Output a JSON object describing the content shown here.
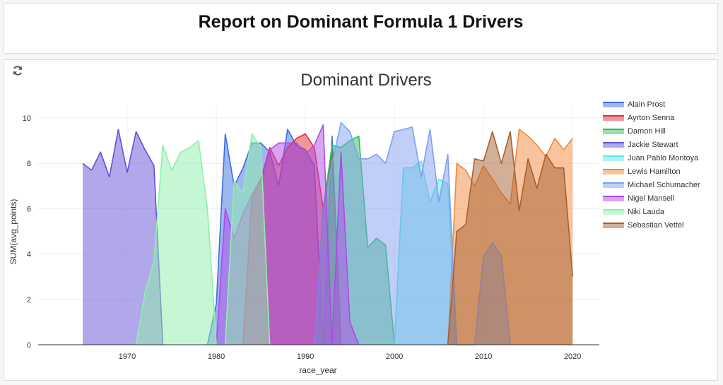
{
  "report": {
    "title": "Report on Dominant Formula 1 Drivers"
  },
  "chart_data": {
    "type": "area",
    "title": "Dominant Drivers",
    "xlabel": "race_year",
    "ylabel": "SUM(avg_points)",
    "xlim": [
      1960,
      2023
    ],
    "ylim": [
      0,
      10.5
    ],
    "x_ticks": [
      1970,
      1980,
      1990,
      2000,
      2010,
      2020
    ],
    "y_ticks": [
      0,
      2,
      4,
      6,
      8,
      10
    ],
    "grid": true,
    "legend_position": "right",
    "series": [
      {
        "name": "Alain Prost",
        "color": "#3c6fe0",
        "points": [
          [
            1979,
            0
          ],
          [
            1980,
            1.8
          ],
          [
            1981,
            9.3
          ],
          [
            1982,
            7
          ],
          [
            1983,
            7.8
          ],
          [
            1984,
            8.9
          ],
          [
            1985,
            8.9
          ],
          [
            1986,
            8.5
          ],
          [
            1987,
            7
          ],
          [
            1988,
            9.5
          ],
          [
            1989,
            8.8
          ],
          [
            1990,
            8.6
          ],
          [
            1991,
            7.9
          ],
          [
            1992,
            0
          ],
          [
            1993,
            9.2
          ],
          [
            1994,
            0
          ]
        ]
      },
      {
        "name": "Ayrton Senna",
        "color": "#e0303c",
        "points": [
          [
            1983,
            0
          ],
          [
            1984,
            6.6
          ],
          [
            1985,
            7.3
          ],
          [
            1986,
            8.7
          ],
          [
            1987,
            7.9
          ],
          [
            1988,
            8.7
          ],
          [
            1989,
            9.1
          ],
          [
            1990,
            9.3
          ],
          [
            1991,
            8.7
          ],
          [
            1992,
            6
          ],
          [
            1993,
            8.5
          ],
          [
            1994,
            0
          ]
        ]
      },
      {
        "name": "Damon Hill",
        "color": "#2bc25a",
        "points": [
          [
            1991,
            0
          ],
          [
            1992,
            6
          ],
          [
            1993,
            8.8
          ],
          [
            1994,
            8.7
          ],
          [
            1995,
            9
          ],
          [
            1996,
            9.2
          ],
          [
            1997,
            4.3
          ],
          [
            1998,
            4.7
          ],
          [
            1999,
            4.4
          ],
          [
            2000,
            0
          ]
        ]
      },
      {
        "name": "Jackie Stewart",
        "color": "#6450d8",
        "points": [
          [
            1965,
            8
          ],
          [
            1966,
            7.7
          ],
          [
            1967,
            8.5
          ],
          [
            1968,
            7.4
          ],
          [
            1969,
            9.5
          ],
          [
            1970,
            7.6
          ],
          [
            1971,
            9.4
          ],
          [
            1972,
            8.6
          ],
          [
            1973,
            7.9
          ],
          [
            1974,
            0
          ]
        ]
      },
      {
        "name": "Juan Pablo Montoya",
        "color": "#5ee8e8",
        "points": [
          [
            2000,
            0
          ],
          [
            2001,
            7.8
          ],
          [
            2002,
            7.8
          ],
          [
            2003,
            8.1
          ],
          [
            2004,
            6.3
          ],
          [
            2005,
            7.3
          ],
          [
            2006,
            7.1
          ],
          [
            2007,
            0
          ]
        ]
      },
      {
        "name": "Lewis Hamilton",
        "color": "#f08a3c",
        "points": [
          [
            2006,
            0
          ],
          [
            2007,
            8
          ],
          [
            2008,
            7.7
          ],
          [
            2009,
            7
          ],
          [
            2010,
            7.9
          ],
          [
            2011,
            7.3
          ],
          [
            2012,
            6.7
          ],
          [
            2013,
            6.2
          ],
          [
            2014,
            9.5
          ],
          [
            2015,
            9.2
          ],
          [
            2016,
            8.8
          ],
          [
            2017,
            8.3
          ],
          [
            2018,
            9.1
          ],
          [
            2019,
            8.6
          ],
          [
            2020,
            9.1
          ]
        ]
      },
      {
        "name": "Michael Schumacher",
        "color": "#7fa0f0",
        "points": [
          [
            1991,
            0
          ],
          [
            1992,
            5.6
          ],
          [
            1993,
            8
          ],
          [
            1994,
            9.8
          ],
          [
            1995,
            9.4
          ],
          [
            1996,
            8.2
          ],
          [
            1997,
            8.2
          ],
          [
            1998,
            8.4
          ],
          [
            1999,
            8
          ],
          [
            2000,
            9.4
          ],
          [
            2001,
            9.5
          ],
          [
            2002,
            9.6
          ],
          [
            2003,
            7.4
          ],
          [
            2004,
            9.5
          ],
          [
            2005,
            6.3
          ],
          [
            2006,
            8.4
          ],
          [
            2007,
            0
          ],
          [
            2009,
            0
          ],
          [
            2010,
            3.9
          ],
          [
            2011,
            4.5
          ],
          [
            2012,
            3.9
          ],
          [
            2013,
            0
          ]
        ]
      },
      {
        "name": "Nigel Mansell",
        "color": "#b04ae8",
        "points": [
          [
            1980,
            0
          ],
          [
            1981,
            6
          ],
          [
            1982,
            4.7
          ],
          [
            1983,
            5.8
          ],
          [
            1984,
            6.6
          ],
          [
            1985,
            7.2
          ],
          [
            1986,
            8.6
          ],
          [
            1987,
            8.9
          ],
          [
            1988,
            8.9
          ],
          [
            1989,
            8.9
          ],
          [
            1990,
            8.4
          ],
          [
            1991,
            8.8
          ],
          [
            1992,
            9.7
          ],
          [
            1993,
            0
          ],
          [
            1994,
            8.5
          ],
          [
            1995,
            1
          ],
          [
            1996,
            0
          ]
        ]
      },
      {
        "name": "Niki Lauda",
        "color": "#8ef0aa",
        "points": [
          [
            1971,
            0
          ],
          [
            1972,
            2.3
          ],
          [
            1973,
            3.7
          ],
          [
            1974,
            8.8
          ],
          [
            1975,
            7.7
          ],
          [
            1976,
            8.5
          ],
          [
            1977,
            8.7
          ],
          [
            1978,
            9
          ],
          [
            1979,
            6
          ],
          [
            1980,
            0
          ],
          [
            1981,
            0
          ],
          [
            1982,
            7.2
          ],
          [
            1983,
            6.7
          ],
          [
            1984,
            9.3
          ],
          [
            1985,
            8.7
          ],
          [
            1986,
            0
          ]
        ]
      },
      {
        "name": "Sebastian Vettel",
        "color": "#a86030",
        "points": [
          [
            2006,
            0
          ],
          [
            2007,
            5
          ],
          [
            2008,
            5.3
          ],
          [
            2009,
            8.2
          ],
          [
            2010,
            8.1
          ],
          [
            2011,
            9.4
          ],
          [
            2012,
            8
          ],
          [
            2013,
            9.4
          ],
          [
            2014,
            5.9
          ],
          [
            2015,
            8.2
          ],
          [
            2016,
            6.9
          ],
          [
            2017,
            8.4
          ],
          [
            2018,
            7.8
          ],
          [
            2019,
            7.8
          ],
          [
            2020,
            3
          ]
        ]
      }
    ]
  }
}
